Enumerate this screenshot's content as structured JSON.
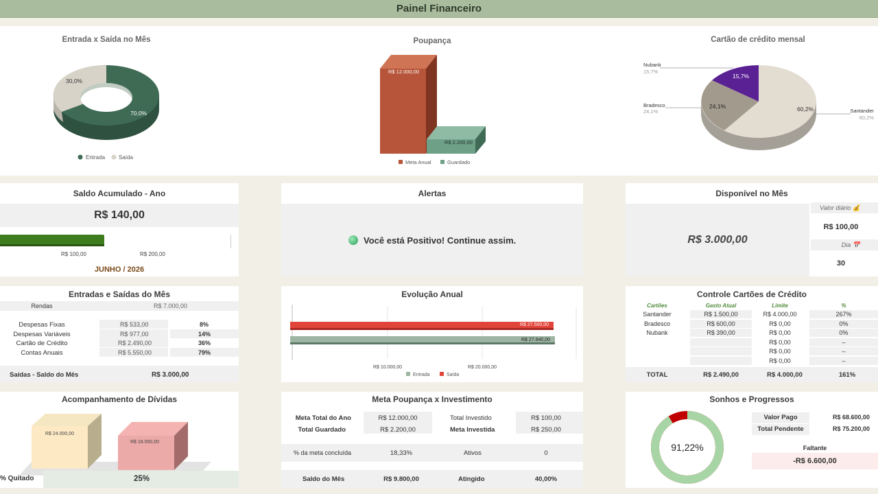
{
  "header": {
    "title": "Painel Financeiro"
  },
  "entrada_saida": {
    "title": "Entrada x Saída no Mês",
    "legend": [
      "Entrada",
      "Saída"
    ],
    "pct_entrada": "70,0%",
    "pct_saida": "30,0%",
    "colors": {
      "entrada": "#3f6b55",
      "saida": "#d7d3c8"
    }
  },
  "poupanca": {
    "title": "Poupança",
    "legend": [
      "Meta Anual",
      "Guardado"
    ],
    "meta_label": "R$ 12.000,00",
    "guardado_label": "R$ 2.200,00",
    "colors": {
      "meta": "#b7553a",
      "guardado": "#6ea088"
    }
  },
  "cartao": {
    "title": "Cartão de crédito mensal",
    "slices": [
      {
        "name": "Nubank",
        "pct": "15,7%"
      },
      {
        "name": "Bradesco",
        "pct": "24,1%"
      },
      {
        "name": "Santander",
        "pct": "60,2%"
      }
    ],
    "colors": {
      "nubank": "#5a2194",
      "bradesco": "#a39a8e",
      "santander": "#e2dcd1"
    }
  },
  "saldo": {
    "title": "Saldo Acumulado - Ano",
    "value": "R$ 140,00",
    "ticks": [
      "R$ 100,00",
      "R$ 200,00"
    ],
    "period": "JUNHO / 2026",
    "bar_value": 140
  },
  "alertas": {
    "title": "Alertas",
    "message": "Você está Positivo! Continue assim."
  },
  "disponivel": {
    "title": "Disponível no Mês",
    "value": "R$ 3.000,00",
    "valor_diario_label": "Valor diário 💰",
    "valor_diario": "R$ 100,00",
    "dia_label": "Dia 📅",
    "dia": "30"
  },
  "entradas_saidas": {
    "title": "Entradas e Saídas do Mês",
    "rendas_label": "Rendas",
    "rendas_value": "R$ 7.000,00",
    "rows": [
      {
        "label": "Despesas Fixas",
        "value": "R$ 533,00",
        "pct": "8%"
      },
      {
        "label": "Despesas Variáveis",
        "value": "R$ 977,00",
        "pct": "14%"
      },
      {
        "label": "Cartão de Crédito",
        "value": "R$ 2.490,00",
        "pct": "36%"
      },
      {
        "label": "Contas Anuais",
        "value": "R$ 5.550,00",
        "pct": "79%"
      }
    ],
    "footer_label": "Saídas - Saldo do Mês",
    "footer_value": "R$ 3.000,00"
  },
  "evolucao": {
    "title": "Evolução Anual",
    "saida_label": "R$ 27.500,00",
    "entrada_label": "R$ 27.640,00",
    "ticks": [
      "R$ 10.000,00",
      "R$ 20.000,00"
    ],
    "legend": [
      "Entrada",
      "Saída"
    ],
    "entrada_value": 27640,
    "saida_value": 27500,
    "colors": {
      "entrada": "#9eb5a3",
      "saida": "#e0443a"
    }
  },
  "controle": {
    "title": "Controle Cartões de Crédito",
    "headers": [
      "Cartões",
      "Gasto Atual",
      "Limite",
      "%"
    ],
    "rows": [
      {
        "cartao": "Santander",
        "gasto": "R$ 1.500,00",
        "limite": "R$ 4.000,00",
        "pct": "267%"
      },
      {
        "cartao": "Bradesco",
        "gasto": "R$ 600,00",
        "limite": "R$ 0,00",
        "pct": "0%"
      },
      {
        "cartao": "Nubank",
        "gasto": "R$ 390,00",
        "limite": "R$ 0,00",
        "pct": "0%"
      },
      {
        "cartao": "",
        "gasto": "",
        "limite": "R$ 0,00",
        "pct": "–"
      },
      {
        "cartao": "",
        "gasto": "",
        "limite": "R$ 0,00",
        "pct": "–"
      },
      {
        "cartao": "",
        "gasto": "",
        "limite": "R$ 0,00",
        "pct": "–"
      }
    ],
    "total_label": "TOTAL",
    "total_gasto": "R$ 2.490,00",
    "total_limite": "R$ 4.000,00",
    "total_pct": "161%"
  },
  "dividas": {
    "title": "Acompanhamento de Dívidas",
    "bar1_label": "R$ 24.000,00",
    "bar2_label": "R$ 18.050,00",
    "quitado_label": "% Quitado",
    "quitado_value": "25%"
  },
  "meta": {
    "title": "Meta Poupança x Investimento",
    "meta_total_label": "Meta Total do Ano",
    "meta_total": "R$ 12.000,00",
    "total_investido_label": "Total Investido",
    "total_investido": "R$ 100,00",
    "total_guardado_label": "Total Guardado",
    "total_guardado": "R$ 2.200,00",
    "meta_investida_label": "Meta Investida",
    "meta_investida": "R$ 250,00",
    "pct_meta_label": "% da meta concluída",
    "pct_meta": "18,33%",
    "ativos_label": "Ativos",
    "ativos": "0",
    "saldo_label": "Saldo do Mês",
    "saldo": "R$ 9.800,00",
    "atingido_label": "Atingido",
    "atingido": "40,00%"
  },
  "sonhos": {
    "title": "Sonhos e Progressos",
    "pct": "91,22%",
    "progress": 0.9122,
    "valor_pago_label": "Valor Pago",
    "valor_pago": "R$ 68.600,00",
    "total_pendente_label": "Total Pendente",
    "total_pendente": "R$ 75.200,00",
    "faltante_label": "Faltante",
    "faltante": "-R$ 6.600,00"
  }
}
